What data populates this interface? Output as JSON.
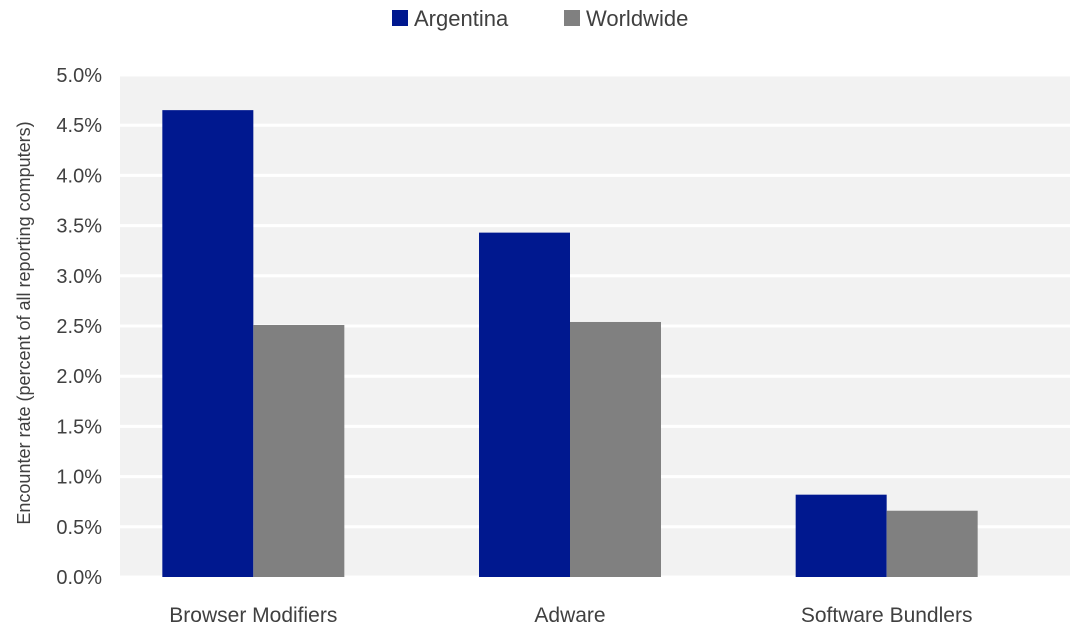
{
  "chart_data": {
    "type": "bar",
    "title": "",
    "xlabel": "",
    "ylabel": "Encounter rate (percent of all reporting computers)",
    "categories": [
      "Browser Modifiers",
      "Adware",
      "Software Bundlers"
    ],
    "series": [
      {
        "name": "Argentina",
        "values": [
          4.65,
          3.43,
          0.82
        ],
        "color": "#00188F"
      },
      {
        "name": "Worldwide",
        "values": [
          2.51,
          2.54,
          0.66
        ],
        "color": "#808080"
      }
    ],
    "ylim": [
      0,
      5
    ],
    "yticks": [
      "0.0%",
      "0.5%",
      "1.0%",
      "1.5%",
      "2.0%",
      "2.5%",
      "3.0%",
      "3.5%",
      "4.0%",
      "4.5%",
      "5.0%"
    ],
    "ytick_values": [
      0,
      0.5,
      1,
      1.5,
      2,
      2.5,
      3,
      3.5,
      4,
      4.5,
      5
    ],
    "grid": true,
    "plot_background": "#f2f2f2",
    "grid_color": "#ffffff",
    "legend_position": "top"
  }
}
